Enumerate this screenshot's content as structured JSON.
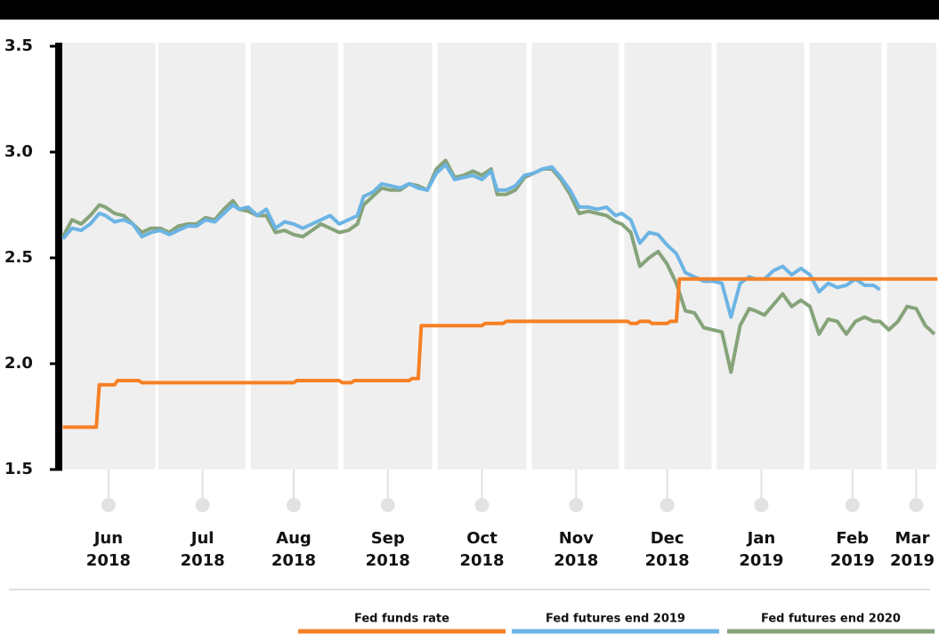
{
  "chart_data": {
    "type": "line",
    "xlim": [
      -1.2,
      287.5
    ],
    "ylim": [
      1.5,
      3.5
    ],
    "yticks": [
      1.5,
      {
        "value": 2,
        "label": "2.0"
      },
      2.5,
      {
        "value": 3,
        "label": "3.0"
      },
      3.5
    ],
    "xticks": [
      {
        "value": 14,
        "label": "Jun 2018"
      },
      {
        "value": 45,
        "label": "Jul 2018"
      },
      {
        "value": 75,
        "label": "Aug 2018"
      },
      {
        "value": 106,
        "label": "Sep 2018"
      },
      {
        "value": 137,
        "label": "Oct 2018"
      },
      {
        "value": 168,
        "label": "Nov 2018"
      },
      {
        "value": 198,
        "label": "Dec 2018"
      },
      {
        "value": 229,
        "label": "Jan 2019"
      },
      {
        "value": 259,
        "label": "Feb 2019"
      },
      {
        "value": 280,
        "label": "Mar 2019"
      }
    ],
    "series": [
      {
        "name": "Fed funds rate",
        "color": "#f58025",
        "x": [
          -1,
          10,
          11,
          16,
          17,
          24,
          25,
          75,
          76,
          90,
          91,
          94,
          95,
          113,
          114,
          116,
          117,
          137,
          138,
          144,
          145,
          185,
          186,
          188,
          189,
          192,
          193,
          198,
          199,
          201,
          202,
          287
        ],
        "values": [
          1.7,
          1.7,
          1.9,
          1.9,
          1.92,
          1.92,
          1.91,
          1.91,
          1.92,
          1.92,
          1.91,
          1.91,
          1.92,
          1.92,
          1.93,
          1.93,
          2.18,
          2.18,
          2.19,
          2.19,
          2.2,
          2.2,
          2.19,
          2.19,
          2.2,
          2.2,
          2.19,
          2.19,
          2.2,
          2.2,
          2.4,
          2.4
        ]
      },
      {
        "name": "Fed futures end 2019",
        "color": "#6cb4e4",
        "x": [
          -1,
          2,
          5,
          8,
          11,
          13,
          16,
          19,
          22,
          25,
          28,
          31,
          34,
          37,
          40,
          43,
          46,
          49,
          52,
          55,
          57,
          60,
          63,
          66,
          69,
          72,
          75,
          78,
          81,
          84,
          87,
          90,
          93,
          96,
          98,
          101,
          104,
          107,
          110,
          113,
          116,
          119,
          122,
          125,
          128,
          131,
          134,
          137,
          140,
          142,
          145,
          148,
          151,
          154,
          157,
          160,
          163,
          166,
          169,
          172,
          175,
          178,
          181,
          183,
          186,
          189,
          192,
          195,
          198,
          201,
          204,
          207,
          210,
          213,
          216,
          219,
          222,
          225,
          227,
          230,
          233,
          236,
          239,
          242,
          245,
          248,
          251,
          254,
          257,
          260,
          263,
          266,
          268
        ],
        "values": [
          2.59,
          2.64,
          2.63,
          2.66,
          2.71,
          2.7,
          2.67,
          2.68,
          2.66,
          2.6,
          2.62,
          2.63,
          2.61,
          2.63,
          2.65,
          2.65,
          2.68,
          2.67,
          2.71,
          2.75,
          2.73,
          2.74,
          2.7,
          2.73,
          2.64,
          2.67,
          2.66,
          2.64,
          2.66,
          2.68,
          2.7,
          2.66,
          2.68,
          2.7,
          2.79,
          2.81,
          2.85,
          2.84,
          2.83,
          2.85,
          2.83,
          2.82,
          2.9,
          2.94,
          2.87,
          2.88,
          2.89,
          2.87,
          2.91,
          2.82,
          2.82,
          2.84,
          2.89,
          2.9,
          2.92,
          2.93,
          2.88,
          2.82,
          2.74,
          2.74,
          2.73,
          2.74,
          2.7,
          2.71,
          2.68,
          2.57,
          2.62,
          2.61,
          2.56,
          2.52,
          2.43,
          2.41,
          2.39,
          2.39,
          2.38,
          2.22,
          2.38,
          2.41,
          2.4,
          2.4,
          2.44,
          2.46,
          2.42,
          2.45,
          2.42,
          2.34,
          2.38,
          2.36,
          2.37,
          2.4,
          2.37,
          2.37,
          2.35
        ]
      },
      {
        "name": "Fed futures end 2020",
        "color": "#86a37a",
        "x": [
          -1,
          2,
          5,
          8,
          11,
          13,
          16,
          19,
          22,
          25,
          28,
          31,
          34,
          37,
          40,
          43,
          46,
          49,
          52,
          55,
          57,
          60,
          63,
          66,
          69,
          72,
          75,
          78,
          81,
          84,
          87,
          90,
          93,
          96,
          98,
          101,
          104,
          107,
          110,
          113,
          116,
          119,
          122,
          125,
          128,
          131,
          134,
          137,
          140,
          142,
          145,
          148,
          151,
          154,
          157,
          160,
          163,
          166,
          169,
          172,
          175,
          178,
          181,
          183,
          186,
          189,
          192,
          195,
          198,
          201,
          204,
          207,
          210,
          213,
          216,
          219,
          222,
          225,
          227,
          230,
          233,
          236,
          239,
          242,
          245,
          248,
          251,
          254,
          257,
          260,
          263,
          266,
          268,
          271,
          274,
          277,
          280,
          283,
          286
        ],
        "values": [
          2.6,
          2.68,
          2.66,
          2.7,
          2.75,
          2.74,
          2.71,
          2.7,
          2.66,
          2.62,
          2.64,
          2.64,
          2.62,
          2.65,
          2.66,
          2.66,
          2.69,
          2.68,
          2.73,
          2.77,
          2.73,
          2.72,
          2.7,
          2.7,
          2.62,
          2.63,
          2.61,
          2.6,
          2.63,
          2.66,
          2.64,
          2.62,
          2.63,
          2.66,
          2.75,
          2.79,
          2.83,
          2.82,
          2.82,
          2.85,
          2.84,
          2.82,
          2.92,
          2.96,
          2.88,
          2.89,
          2.91,
          2.89,
          2.92,
          2.8,
          2.8,
          2.82,
          2.88,
          2.9,
          2.92,
          2.92,
          2.87,
          2.8,
          2.71,
          2.72,
          2.71,
          2.7,
          2.67,
          2.66,
          2.62,
          2.46,
          2.5,
          2.53,
          2.47,
          2.38,
          2.25,
          2.24,
          2.17,
          2.16,
          2.15,
          1.96,
          2.18,
          2.26,
          2.25,
          2.23,
          2.28,
          2.33,
          2.27,
          2.3,
          2.27,
          2.14,
          2.21,
          2.2,
          2.14,
          2.2,
          2.22,
          2.2,
          2.2,
          2.16,
          2.2,
          2.27,
          2.26,
          2.18,
          2.14
        ]
      }
    ]
  }
}
